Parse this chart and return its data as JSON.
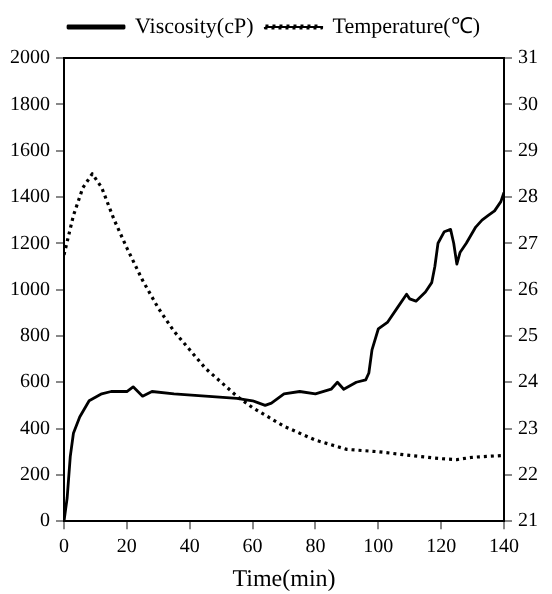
{
  "chart_data": {
    "type": "line",
    "xlabel": "Time(min)",
    "legend": "top",
    "grid": false,
    "marker": "none",
    "xlim": [
      0,
      140
    ],
    "xticks": [
      0,
      20,
      40,
      60,
      80,
      100,
      120,
      140
    ],
    "ylim": [
      0,
      2000
    ],
    "yticks": [
      0,
      200,
      400,
      600,
      800,
      1000,
      1200,
      1400,
      1600,
      1800,
      2000
    ],
    "y2lim": [
      21,
      31
    ],
    "y2ticks": [
      21,
      22,
      23,
      24,
      25,
      26,
      27,
      28,
      29,
      30,
      31
    ],
    "series": [
      {
        "name": "Viscosity(cP)",
        "color": "#000000",
        "line_style": "solid",
        "x": [
          0,
          1,
          2,
          3,
          5,
          8,
          12,
          15,
          20,
          22,
          25,
          28,
          35,
          45,
          55,
          60,
          64,
          66,
          70,
          75,
          80,
          85,
          87,
          89,
          93,
          96,
          97,
          98,
          100,
          103,
          106,
          109,
          110,
          112,
          115,
          117,
          118,
          119,
          121,
          123,
          124,
          125,
          126,
          128,
          131,
          133,
          135,
          137,
          139,
          140
        ],
        "values": [
          0,
          100,
          280,
          380,
          450,
          520,
          550,
          560,
          560,
          580,
          540,
          560,
          550,
          540,
          530,
          520,
          500,
          510,
          550,
          560,
          550,
          570,
          600,
          570,
          600,
          610,
          640,
          740,
          830,
          860,
          920,
          980,
          960,
          950,
          990,
          1030,
          1100,
          1200,
          1250,
          1260,
          1200,
          1110,
          1160,
          1200,
          1270,
          1300,
          1320,
          1340,
          1380,
          1420
        ]
      },
      {
        "name": "Temperature(℃)",
        "color": "#000000",
        "line_style": "dotted",
        "axis": "y2",
        "x": [
          0,
          3,
          6,
          9,
          12,
          16,
          20,
          25,
          30,
          35,
          40,
          45,
          50,
          55,
          60,
          65,
          70,
          75,
          80,
          90,
          100,
          110,
          120,
          125,
          130,
          140
        ],
        "values": [
          26.75,
          27.6,
          28.2,
          28.5,
          28.2,
          27.5,
          26.9,
          26.2,
          25.6,
          25.1,
          24.7,
          24.3,
          24.0,
          23.7,
          23.45,
          23.25,
          23.05,
          22.9,
          22.75,
          22.55,
          22.5,
          22.42,
          22.35,
          22.33,
          22.38,
          22.42
        ]
      }
    ]
  }
}
